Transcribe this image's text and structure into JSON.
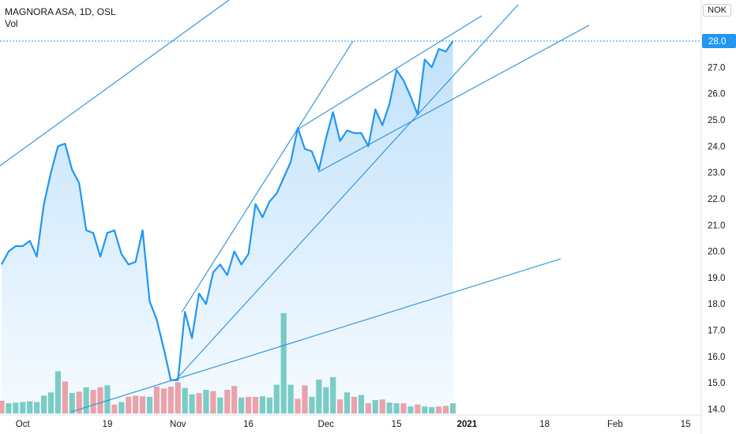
{
  "header": {
    "title": "MAGNORA ASA, 1D, OSL",
    "vol_label": "Vol",
    "currency": "NOK"
  },
  "colors": {
    "line": "#2196f3",
    "trend": "#2a8fd6",
    "vol_up": "#7fcfc4",
    "vol_down": "#f4a3a7",
    "last_price_badge": "#2196f3"
  },
  "chart_data": {
    "type": "line",
    "title": "MAGNORA ASA, 1D, OSL",
    "ylim": [
      13.8,
      29.5
    ],
    "y_ticks": [
      "14.0",
      "15.0",
      "16.0",
      "17.0",
      "18.0",
      "19.0",
      "20.0",
      "21.0",
      "22.0",
      "23.0",
      "24.0",
      "25.0",
      "26.0",
      "27.0",
      "28.0"
    ],
    "last_price": "28.0",
    "x_ticks": [
      {
        "label": "Oct",
        "i": 3
      },
      {
        "label": "19",
        "i": 15
      },
      {
        "label": "Nov",
        "i": 25
      },
      {
        "label": "16",
        "i": 35
      },
      {
        "label": "Dec",
        "i": 46
      },
      {
        "label": "15",
        "i": 56
      },
      {
        "label": "2021",
        "i": 66
      },
      {
        "label": "18",
        "i": 77
      },
      {
        "label": "Feb",
        "i": 87
      },
      {
        "label": "15",
        "i": 97
      }
    ],
    "series": [
      {
        "values": [
          19.5,
          20.0,
          20.2,
          20.2,
          20.4,
          19.8,
          21.8,
          23.0,
          24.0,
          24.1,
          23.1,
          22.6,
          20.8,
          20.7,
          19.8,
          20.7,
          20.8,
          19.9,
          19.5,
          19.6,
          20.8,
          18.1,
          17.4,
          16.3,
          15.1,
          15.1,
          17.7,
          16.7,
          18.4,
          18.0,
          19.2,
          19.5,
          19.1,
          20.0,
          19.5,
          19.9,
          21.8,
          21.3,
          21.9,
          22.2,
          22.8,
          23.4,
          24.7,
          23.9,
          23.8,
          23.1,
          24.3,
          25.3,
          24.2,
          24.6,
          24.5,
          24.5,
          24.0,
          25.4,
          24.8,
          25.6,
          26.9,
          26.5,
          25.9,
          25.2,
          27.3,
          27.0,
          27.7,
          27.6,
          28.0
        ]
      }
    ],
    "volume": {
      "values": [
        2.0,
        1.6,
        1.7,
        1.8,
        1.9,
        1.8,
        2.8,
        3.3,
        6.6,
        5.0,
        3.2,
        3.4,
        4.1,
        3.7,
        4.1,
        4.4,
        1.4,
        1.8,
        2.6,
        2.8,
        2.7,
        2.6,
        4.2,
        3.9,
        4.2,
        4.9,
        4.0,
        3.0,
        3.2,
        3.7,
        3.5,
        2.5,
        3.7,
        4.3,
        2.5,
        2.6,
        2.6,
        2.7,
        2.5,
        4.5,
        15.7,
        4.5,
        2.3,
        4.4,
        2.6,
        5.3,
        4.1,
        5.7,
        2.2,
        3.3,
        2.6,
        2.9,
        1.6,
        2.1,
        2.2,
        1.7,
        1.6,
        1.6,
        1.1,
        1.4,
        1.1,
        1.0,
        1.1,
        1.2,
        1.6
      ],
      "direction": [
        0,
        1,
        1,
        1,
        1,
        1,
        1,
        1,
        1,
        0,
        1,
        0,
        1,
        0,
        0,
        1,
        0,
        1,
        0,
        0,
        0,
        1,
        0,
        0,
        0,
        0,
        1,
        1,
        0,
        1,
        0,
        1,
        0,
        0,
        1,
        0,
        0,
        1,
        1,
        1,
        1,
        1,
        0,
        0,
        1,
        1,
        1,
        1,
        0,
        1,
        0,
        1,
        0,
        1,
        0,
        1,
        1,
        0,
        1,
        0,
        1,
        1,
        0,
        0,
        1
      ]
    },
    "grid": false
  }
}
